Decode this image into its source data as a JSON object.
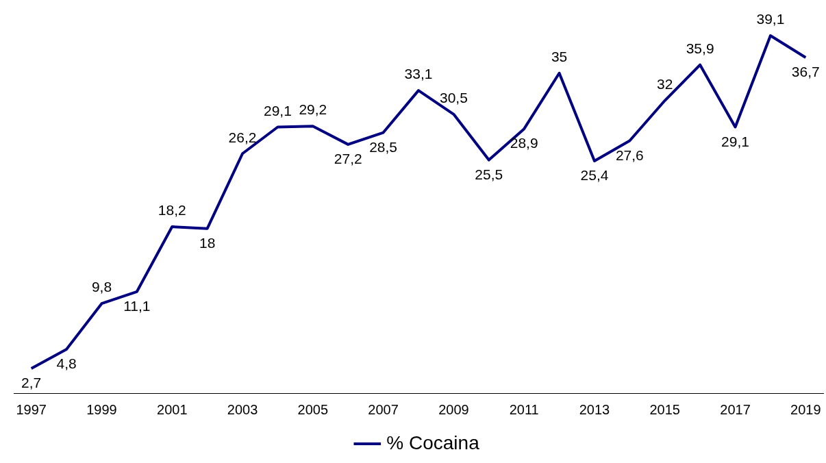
{
  "chart_data": {
    "type": "line",
    "categories": [
      "1997",
      null,
      "1999",
      null,
      "2001",
      null,
      "2003",
      null,
      "2005",
      null,
      "2007",
      null,
      "2009",
      null,
      "2011",
      null,
      "2013",
      null,
      "2015",
      null,
      "2017",
      null,
      "2019"
    ],
    "series": [
      {
        "name": "% Cocaina",
        "color": "#000080",
        "values": [
          2.7,
          4.8,
          9.8,
          11.1,
          18.2,
          18,
          26.2,
          29.1,
          29.2,
          27.2,
          28.5,
          33.1,
          30.5,
          25.5,
          28.9,
          35,
          25.4,
          27.6,
          32,
          35.9,
          29.1,
          39.1,
          36.7
        ],
        "value_labels": [
          "2,7",
          "4,8",
          "9,8",
          "11,1",
          "18,2",
          "18",
          "26,2",
          "29,1",
          "29,2",
          "27,2",
          "28,5",
          "33,1",
          "30,5",
          "25,5",
          "28,9",
          "35",
          "25,4",
          "27,6",
          "32",
          "35,9",
          "29,1",
          "39,1",
          "36,7"
        ]
      }
    ],
    "tick_labels": "x",
    "grid": false,
    "legend": "bottom",
    "marker": "none",
    "line_style": "solid"
  }
}
